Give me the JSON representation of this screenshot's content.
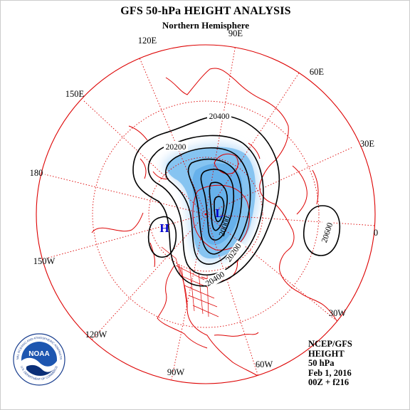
{
  "title": "GFS 50-hPa HEIGHT ANALYSIS",
  "subtitle": "Northern Hemisphere",
  "longitudes": {
    "lon_90e": "90E",
    "lon_120e": "120E",
    "lon_60e": "60E",
    "lon_150e": "150E",
    "lon_30e": "30E",
    "lon_180": "180",
    "lon_0": "0",
    "lon_150w": "150W",
    "lon_30w": "30W",
    "lon_120w": "120W",
    "lon_90w": "90W",
    "lon_60w": "60W"
  },
  "contours": {
    "c20400_top": "20400",
    "c20200_top": "20200",
    "c20600_east": "20600",
    "c20400_bottom": "20400",
    "c20200_bottom": "20200",
    "inner_center": "20000"
  },
  "centers": {
    "low": "L",
    "high": "H"
  },
  "info": {
    "source": "NCEP/GFS",
    "field": "HEIGHT",
    "level": "50 hPa",
    "date": "Feb 1, 2016",
    "run": "00Z + f216"
  },
  "logo": {
    "text": "NOAA",
    "ring_top": "NATIONAL OCEANIC AND ATMOSPHERIC ADMINISTRATION",
    "ring_bottom": "U.S. DEPARTMENT OF COMMERCE"
  },
  "colors": {
    "coast": "#dd0000",
    "grid": "#dd0000",
    "contour": "#000000",
    "vortex_fill": "#6fb6ec",
    "vortex_glow": "#cfe6fa",
    "low_marker": "#0000cc",
    "high_marker": "#0000cc"
  }
}
